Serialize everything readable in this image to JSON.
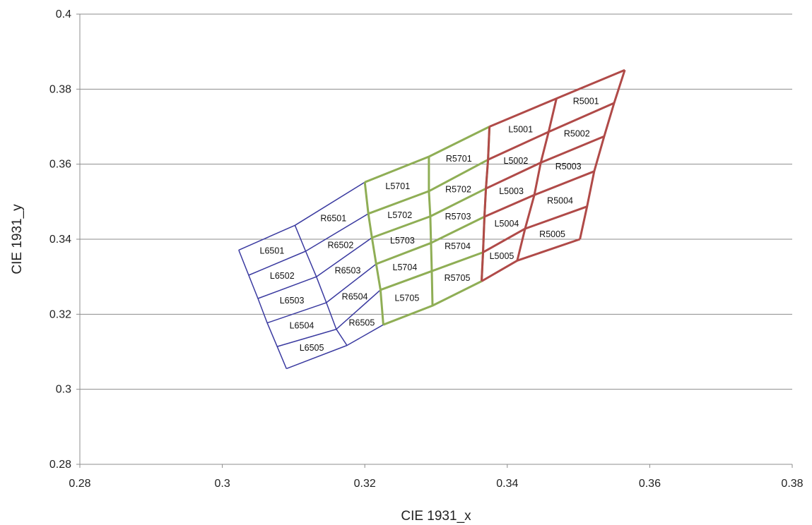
{
  "chart_data": {
    "type": "scatter",
    "title": "",
    "xlabel": "CIE 1931_x",
    "ylabel": "CIE 1931_y",
    "xlim": [
      0.28,
      0.38
    ],
    "ylim": [
      0.28,
      0.4
    ],
    "x_ticks": [
      "0.28",
      "0.3",
      "0.32",
      "0.34",
      "0.36",
      "0.38"
    ],
    "y_ticks": [
      "0.28",
      "0.3",
      "0.32",
      "0.34",
      "0.36",
      "0.38",
      "0.4"
    ],
    "grid": "horizontal",
    "legend": "none",
    "series": [
      {
        "color": "#3a3aa0",
        "grid_rows": [
          [
            [
              0.3023,
              0.3371
            ],
            [
              0.3102,
              0.3437
            ],
            [
              0.32,
              0.3552
            ]
          ],
          [
            [
              0.3037,
              0.3304
            ],
            [
              0.3117,
              0.3368
            ],
            [
              0.3205,
              0.3468
            ]
          ],
          [
            [
              0.305,
              0.3242
            ],
            [
              0.3132,
              0.33
            ],
            [
              0.321,
              0.3404
            ]
          ],
          [
            [
              0.3063,
              0.3177
            ],
            [
              0.3146,
              0.3231
            ],
            [
              0.3216,
              0.3334
            ]
          ],
          [
            [
              0.3077,
              0.3114
            ],
            [
              0.316,
              0.316
            ],
            [
              0.3222,
              0.3265
            ]
          ],
          [
            [
              0.309,
              0.3055
            ],
            [
              0.3175,
              0.3117
            ],
            [
              0.3226,
              0.3172
            ]
          ]
        ],
        "bins": [
          "L6501",
          "R6501",
          "L6502",
          "R6502",
          "L6503",
          "R6503",
          "L6504",
          "R6504",
          "L6505",
          "R6505"
        ]
      },
      {
        "color": "#8fae55",
        "grid_rows": [
          [
            [
              0.32,
              0.3552
            ],
            [
              0.329,
              0.362
            ],
            [
              0.3375,
              0.37
            ]
          ],
          [
            [
              0.3205,
              0.3468
            ],
            [
              0.329,
              0.3528
            ],
            [
              0.3373,
              0.3612
            ]
          ],
          [
            [
              0.321,
              0.3404
            ],
            [
              0.3292,
              0.3461
            ],
            [
              0.337,
              0.3535
            ]
          ],
          [
            [
              0.3216,
              0.3334
            ],
            [
              0.3293,
              0.339
            ],
            [
              0.3368,
              0.346
            ]
          ],
          [
            [
              0.3222,
              0.3265
            ],
            [
              0.3294,
              0.3315
            ],
            [
              0.3366,
              0.3365
            ]
          ],
          [
            [
              0.3226,
              0.3172
            ],
            [
              0.3295,
              0.3223
            ],
            [
              0.3364,
              0.3288
            ]
          ]
        ],
        "bins": [
          "L5701",
          "R5701",
          "L5702",
          "R5702",
          "L5703",
          "R5703",
          "L5704",
          "R5704",
          "L5705",
          "R5705"
        ]
      },
      {
        "color": "#b04a48",
        "grid_rows": [
          [
            [
              0.3375,
              0.37
            ],
            [
              0.3469,
              0.3775
            ],
            [
              0.3565,
              0.3851
            ]
          ],
          [
            [
              0.3373,
              0.3612
            ],
            [
              0.3458,
              0.3686
            ],
            [
              0.355,
              0.3763
            ]
          ],
          [
            [
              0.337,
              0.3535
            ],
            [
              0.3447,
              0.3604
            ],
            [
              0.3536,
              0.3674
            ]
          ],
          [
            [
              0.3368,
              0.346
            ],
            [
              0.3438,
              0.3518
            ],
            [
              0.3522,
              0.3581
            ]
          ],
          [
            [
              0.3366,
              0.3365
            ],
            [
              0.3425,
              0.3428
            ],
            [
              0.3512,
              0.3487
            ]
          ],
          [
            [
              0.3364,
              0.3288
            ],
            [
              0.3414,
              0.3343
            ],
            [
              0.3502,
              0.34
            ]
          ]
        ],
        "bins": [
          "L5001",
          "R5001",
          "L5002",
          "R5002",
          "L5003",
          "R5003",
          "L5004",
          "R5004",
          "L5005",
          "R5005"
        ]
      }
    ]
  }
}
